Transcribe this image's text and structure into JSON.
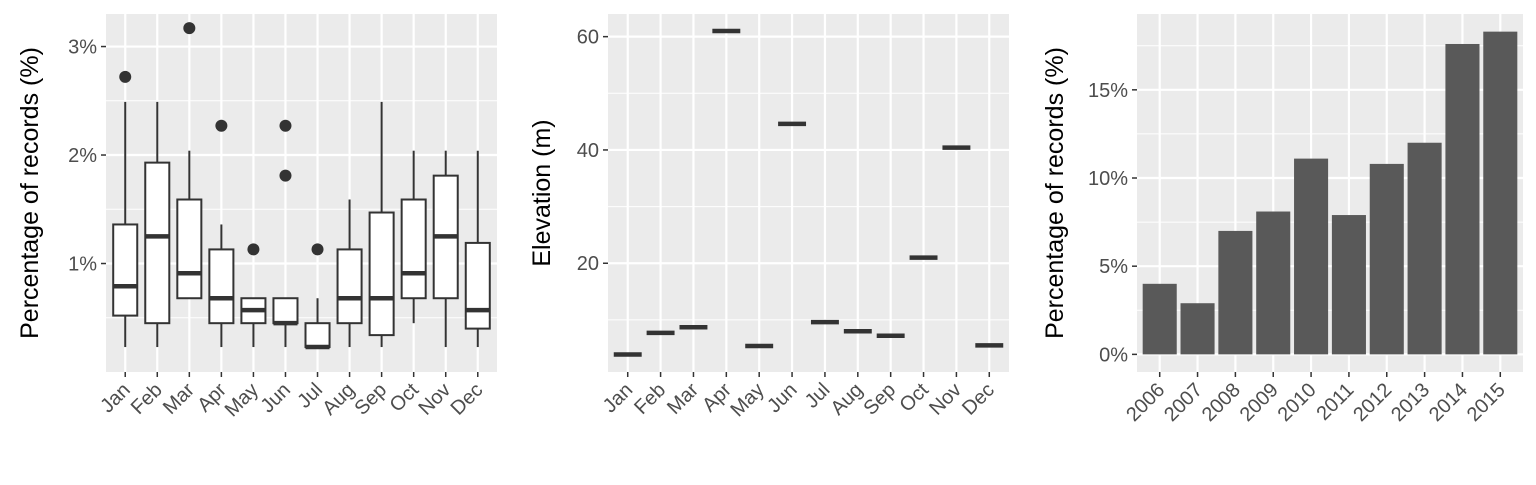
{
  "colors": {
    "panel_bg": "#EBEBEB",
    "grid": "#FFFFFF",
    "ink": "#333333",
    "bar_fill": "#595959",
    "box_fill": "#FFFFFF"
  },
  "chart_data": [
    {
      "type": "box",
      "title": "",
      "xlabel": "",
      "ylabel": "Percentage of records (%)",
      "ylim": [
        0.0,
        3.3
      ],
      "yticks": [
        1,
        2,
        3
      ],
      "ytick_labels": [
        "1%",
        "2%",
        "3%"
      ],
      "categories": [
        "Jan",
        "Feb",
        "Mar",
        "Apr",
        "May",
        "Jun",
        "Jul",
        "Aug",
        "Sep",
        "Oct",
        "Nov",
        "Dec"
      ],
      "boxes": [
        {
          "min": 0.23,
          "q1": 0.52,
          "median": 0.79,
          "q3": 1.36,
          "max": 2.49,
          "outliers": [
            2.72
          ]
        },
        {
          "min": 0.23,
          "q1": 0.45,
          "median": 1.25,
          "q3": 1.93,
          "max": 2.49,
          "outliers": []
        },
        {
          "min": 0.68,
          "q1": 0.68,
          "median": 0.91,
          "q3": 1.59,
          "max": 2.04,
          "outliers": [
            3.17
          ]
        },
        {
          "min": 0.23,
          "q1": 0.45,
          "median": 0.68,
          "q3": 1.13,
          "max": 1.36,
          "outliers": [
            2.27
          ]
        },
        {
          "min": 0.23,
          "q1": 0.45,
          "median": 0.57,
          "q3": 0.68,
          "max": 0.68,
          "outliers": [
            1.13
          ]
        },
        {
          "min": 0.23,
          "q1": 0.45,
          "median": 0.45,
          "q3": 0.68,
          "max": 0.68,
          "outliers": [
            2.27,
            1.81
          ]
        },
        {
          "min": 0.23,
          "q1": 0.23,
          "median": 0.23,
          "q3": 0.45,
          "max": 0.68,
          "outliers": [
            1.13
          ]
        },
        {
          "min": 0.23,
          "q1": 0.45,
          "median": 0.68,
          "q3": 1.13,
          "max": 1.59,
          "outliers": []
        },
        {
          "min": 0.23,
          "q1": 0.34,
          "median": 0.68,
          "q3": 1.47,
          "max": 2.49,
          "outliers": []
        },
        {
          "min": 0.45,
          "q1": 0.68,
          "median": 0.91,
          "q3": 1.59,
          "max": 2.04,
          "outliers": []
        },
        {
          "min": 0.23,
          "q1": 0.68,
          "median": 1.25,
          "q3": 1.81,
          "max": 2.04,
          "outliers": []
        },
        {
          "min": 0.23,
          "q1": 0.4,
          "median": 0.57,
          "q3": 1.19,
          "max": 2.04,
          "outliers": []
        }
      ]
    },
    {
      "type": "box",
      "title": "",
      "xlabel": "",
      "ylabel": "Elevation (m)",
      "ylim": [
        0.8,
        64
      ],
      "yticks": [
        20,
        40,
        60
      ],
      "ytick_labels": [
        "20",
        "40",
        "60"
      ],
      "categories": [
        "Jan",
        "Feb",
        "Mar",
        "Apr",
        "May",
        "Jun",
        "Jul",
        "Aug",
        "Sep",
        "Oct",
        "Nov",
        "Dec"
      ],
      "values": [
        3.9,
        7.7,
        8.7,
        61.0,
        5.4,
        44.6,
        9.6,
        8.0,
        7.2,
        21.0,
        40.4,
        5.5
      ]
    },
    {
      "type": "bar",
      "title": "",
      "xlabel": "",
      "ylabel": "Percentage of records (%)",
      "ylim": [
        -1.0,
        19.3
      ],
      "yticks": [
        0,
        5,
        10,
        15
      ],
      "ytick_labels": [
        "0%",
        "5%",
        "10%",
        "15%"
      ],
      "categories": [
        "2006",
        "2007",
        "2008",
        "2009",
        "2010",
        "2011",
        "2012",
        "2013",
        "2014",
        "2015"
      ],
      "values": [
        4.0,
        2.9,
        7.0,
        8.1,
        11.1,
        7.9,
        10.8,
        12.0,
        17.6,
        18.3
      ]
    }
  ]
}
